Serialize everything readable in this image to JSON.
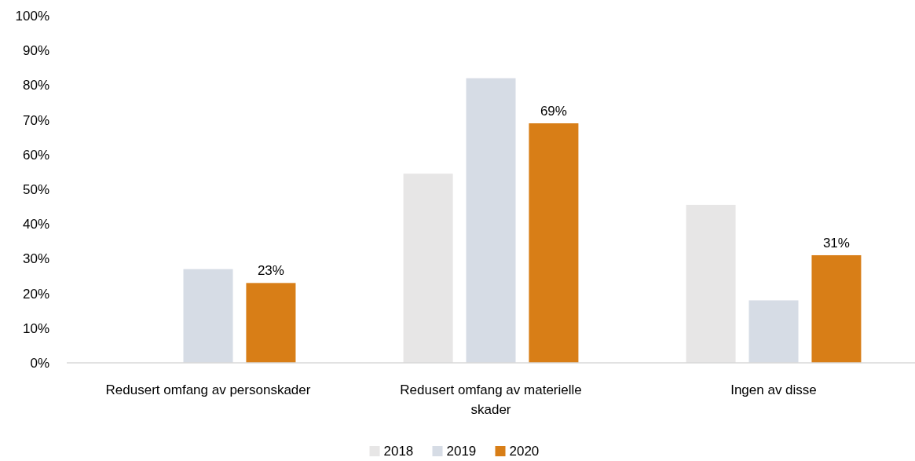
{
  "chart_data": {
    "type": "bar",
    "categories": [
      "Redusert omfang av personskader",
      "Redusert omfang av materielle skader",
      "Ingen av disse"
    ],
    "series": [
      {
        "name": "2018",
        "color": "#e7e6e6",
        "values": [
          null,
          54.5,
          45.5
        ]
      },
      {
        "name": "2019",
        "color": "#d6dce5",
        "values": [
          27,
          82,
          18
        ]
      },
      {
        "name": "2020",
        "color": "#d87e17",
        "values": [
          23,
          69,
          31
        ],
        "value_labels": [
          "23%",
          "69%",
          "31%"
        ]
      }
    ],
    "ylim": [
      0,
      100
    ],
    "yticks": [
      {
        "value": 0,
        "label": "0%"
      },
      {
        "value": 10,
        "label": "10%"
      },
      {
        "value": 20,
        "label": "20%"
      },
      {
        "value": 30,
        "label": "30%"
      },
      {
        "value": 40,
        "label": "40%"
      },
      {
        "value": 50,
        "label": "50%"
      },
      {
        "value": 60,
        "label": "60%"
      },
      {
        "value": 70,
        "label": "70%"
      },
      {
        "value": 80,
        "label": "80%"
      },
      {
        "value": 90,
        "label": "90%"
      },
      {
        "value": 100,
        "label": "100%"
      }
    ],
    "grid": false,
    "legend": "bottom"
  }
}
